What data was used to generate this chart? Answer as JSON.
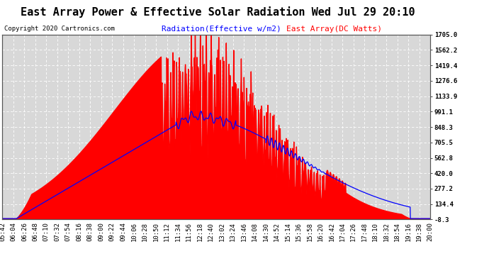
{
  "title": "East Array Power & Effective Solar Radiation Wed Jul 29 20:10",
  "copyright": "Copyright 2020 Cartronics.com",
  "legend_blue": "Radiation(Effective w/m2)",
  "legend_red": "East Array(DC Watts)",
  "bg_color": "#ffffff",
  "plot_bg_color": "#d8d8d8",
  "grid_color": "#ffffff",
  "yticks": [
    1705.0,
    1562.2,
    1419.4,
    1276.6,
    1133.9,
    991.1,
    848.3,
    705.5,
    562.8,
    420.0,
    277.2,
    134.4,
    -8.3
  ],
  "ymin": -8.3,
  "ymax": 1705.0,
  "xtick_labels": [
    "05:42",
    "06:04",
    "06:26",
    "06:48",
    "07:10",
    "07:32",
    "07:54",
    "08:16",
    "08:38",
    "09:00",
    "09:22",
    "09:44",
    "10:06",
    "10:28",
    "10:50",
    "11:12",
    "11:34",
    "11:56",
    "12:18",
    "12:40",
    "13:02",
    "13:24",
    "13:46",
    "14:08",
    "14:30",
    "14:52",
    "15:14",
    "15:36",
    "15:58",
    "16:20",
    "16:42",
    "17:04",
    "17:26",
    "17:48",
    "18:10",
    "18:32",
    "18:54",
    "19:16",
    "19:38",
    "20:00"
  ],
  "title_fontsize": 11,
  "tick_fontsize": 6.5,
  "legend_fontsize": 8,
  "copyright_fontsize": 6.5
}
